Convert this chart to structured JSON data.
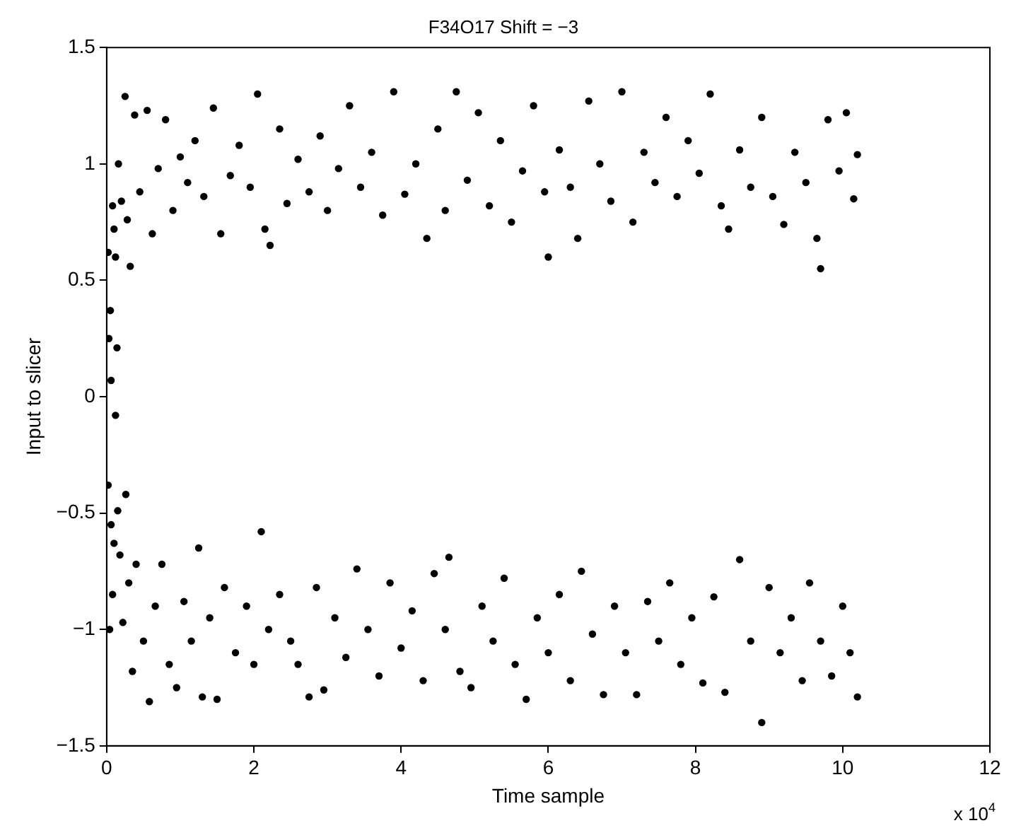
{
  "chart_data": {
    "type": "scatter",
    "title": "F34O17 Shift = −3",
    "xlabel": "Time sample",
    "ylabel": "Input to slicer",
    "annotations": [
      "x 10$^{4}$"
    ],
    "xlim": [
      0,
      12
    ],
    "xticks": [
      0,
      2,
      4,
      6,
      8,
      10,
      12
    ],
    "ylim": [
      -1.5,
      1.5
    ],
    "yticks": [
      {
        "value": -1.5,
        "label": "−1.5"
      },
      {
        "value": -1,
        "label": "−1"
      },
      {
        "value": -0.5,
        "label": "−0.5"
      },
      0,
      0.5,
      1,
      1.5
    ],
    "marker": "circle",
    "grid": false,
    "legend": false,
    "series": [
      {
        "color": "#000000",
        "x": [
          0.02,
          0.03,
          0.05,
          0.06,
          0.08,
          0.1,
          0.12,
          0.14,
          0.16,
          0.2,
          0.25,
          0.28,
          0.32,
          0.38,
          0.45,
          0.55,
          0.62,
          0.7,
          0.8,
          0.9,
          1.0,
          1.1,
          1.2,
          1.32,
          1.45,
          1.55,
          1.68,
          1.8,
          1.95,
          2.05,
          2.15,
          2.22,
          2.35,
          2.45,
          2.6,
          2.75,
          2.9,
          3.0,
          3.15,
          3.3,
          3.45,
          3.6,
          3.75,
          3.9,
          4.05,
          4.2,
          4.35,
          4.5,
          4.6,
          4.75,
          4.9,
          5.05,
          5.2,
          5.35,
          5.5,
          5.65,
          5.8,
          5.95,
          6.0,
          6.15,
          6.3,
          6.4,
          6.55,
          6.7,
          6.85,
          7.0,
          7.15,
          7.3,
          7.45,
          7.6,
          7.75,
          7.9,
          8.05,
          8.2,
          8.35,
          8.45,
          8.6,
          8.75,
          8.9,
          9.05,
          9.2,
          9.35,
          9.5,
          9.65,
          9.7,
          9.8,
          9.95,
          10.05,
          10.15,
          10.2
        ],
        "values": [
          0.62,
          0.25,
          0.37,
          0.07,
          0.82,
          0.72,
          0.6,
          0.21,
          1.0,
          0.84,
          1.29,
          0.76,
          0.56,
          1.21,
          0.88,
          1.23,
          0.7,
          0.98,
          1.19,
          0.8,
          1.03,
          0.92,
          1.1,
          0.86,
          1.24,
          0.7,
          0.95,
          1.08,
          0.9,
          1.3,
          0.72,
          0.65,
          1.15,
          0.83,
          1.02,
          0.88,
          1.12,
          0.8,
          0.98,
          1.25,
          0.9,
          1.05,
          0.78,
          1.31,
          0.87,
          1.0,
          0.68,
          1.15,
          0.8,
          1.31,
          0.93,
          1.22,
          0.82,
          1.1,
          0.75,
          0.97,
          1.25,
          0.88,
          0.6,
          1.06,
          0.9,
          0.68,
          1.27,
          1.0,
          0.84,
          1.31,
          0.75,
          1.05,
          0.92,
          1.2,
          0.86,
          1.1,
          0.96,
          1.3,
          0.82,
          0.72,
          1.06,
          0.9,
          1.2,
          0.86,
          0.74,
          1.05,
          0.92,
          0.68,
          0.55,
          1.19,
          0.97,
          1.22,
          0.85,
          1.04
        ]
      },
      {
        "color": "#000000",
        "x": [
          0.02,
          0.04,
          0.06,
          0.08,
          0.1,
          0.12,
          0.15,
          0.18,
          0.22,
          0.26,
          0.3,
          0.35,
          0.4,
          0.5,
          0.58,
          0.66,
          0.75,
          0.85,
          0.95,
          1.05,
          1.15,
          1.25,
          1.3,
          1.4,
          1.5,
          1.6,
          1.75,
          1.9,
          2.0,
          2.1,
          2.2,
          2.35,
          2.5,
          2.6,
          2.75,
          2.85,
          2.95,
          3.1,
          3.25,
          3.4,
          3.55,
          3.7,
          3.85,
          4.0,
          4.15,
          4.3,
          4.45,
          4.6,
          4.65,
          4.8,
          4.95,
          5.1,
          5.25,
          5.4,
          5.55,
          5.7,
          5.85,
          6.0,
          6.15,
          6.3,
          6.45,
          6.6,
          6.75,
          6.9,
          7.05,
          7.2,
          7.35,
          7.5,
          7.65,
          7.8,
          7.95,
          8.1,
          8.25,
          8.4,
          8.6,
          8.75,
          8.9,
          9.0,
          9.15,
          9.3,
          9.45,
          9.55,
          9.7,
          9.85,
          10.0,
          10.1,
          10.2
        ],
        "values": [
          -0.38,
          -1.0,
          -0.55,
          -0.85,
          -0.63,
          -0.08,
          -0.49,
          -0.68,
          -0.97,
          -0.42,
          -0.8,
          -1.18,
          -0.72,
          -1.05,
          -1.31,
          -0.9,
          -0.72,
          -1.15,
          -1.25,
          -0.88,
          -1.05,
          -0.65,
          -1.29,
          -0.95,
          -1.3,
          -0.82,
          -1.1,
          -0.9,
          -1.15,
          -0.58,
          -1.0,
          -0.85,
          -1.05,
          -1.15,
          -1.29,
          -0.82,
          -1.26,
          -0.95,
          -1.12,
          -0.74,
          -1.0,
          -1.2,
          -0.8,
          -1.08,
          -0.92,
          -1.22,
          -0.76,
          -1.0,
          -0.69,
          -1.18,
          -1.25,
          -0.9,
          -1.05,
          -0.78,
          -1.15,
          -1.3,
          -0.95,
          -1.1,
          -0.85,
          -1.22,
          -0.75,
          -1.02,
          -1.28,
          -0.9,
          -1.1,
          -1.28,
          -0.88,
          -1.05,
          -0.8,
          -1.15,
          -0.95,
          -1.23,
          -0.86,
          -1.27,
          -0.7,
          -1.05,
          -1.4,
          -0.82,
          -1.1,
          -0.95,
          -1.22,
          -0.8,
          -1.05,
          -1.2,
          -0.9,
          -1.1,
          -1.29
        ]
      }
    ]
  }
}
